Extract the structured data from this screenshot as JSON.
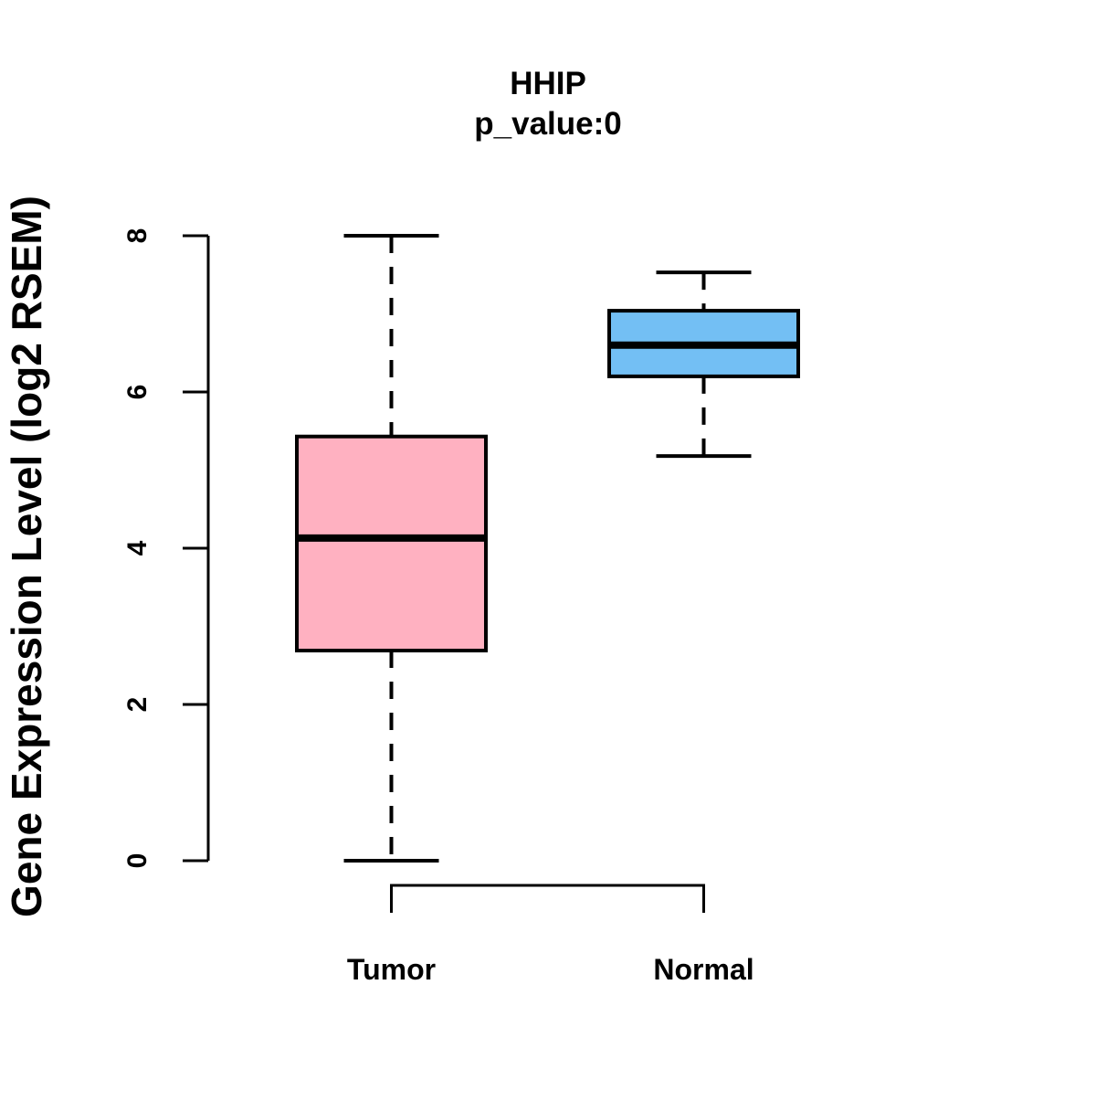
{
  "chart_data": {
    "type": "boxplot",
    "title": "HHIP",
    "subtitle": "p_value:0",
    "ylabel": "Gene Expression Level (log2 RSEM)",
    "xlabel": "",
    "ylim": [
      0,
      8
    ],
    "yticks": [
      0,
      2,
      4,
      6,
      8
    ],
    "grid": "off",
    "categories": [
      "Tumor",
      "Normal"
    ],
    "series": [
      {
        "name": "Tumor",
        "lower_whisker": 0.0,
        "q1": 2.69,
        "median": 4.13,
        "q3": 5.43,
        "upper_whisker": 8.0,
        "fill": "#FFB1C1"
      },
      {
        "name": "Normal",
        "lower_whisker": 5.18,
        "q1": 6.2,
        "median": 6.6,
        "q3": 7.04,
        "upper_whisker": 7.53,
        "fill": "#73BFF4"
      }
    ],
    "axis_color": "#000000",
    "background": "#FFFFFF"
  }
}
